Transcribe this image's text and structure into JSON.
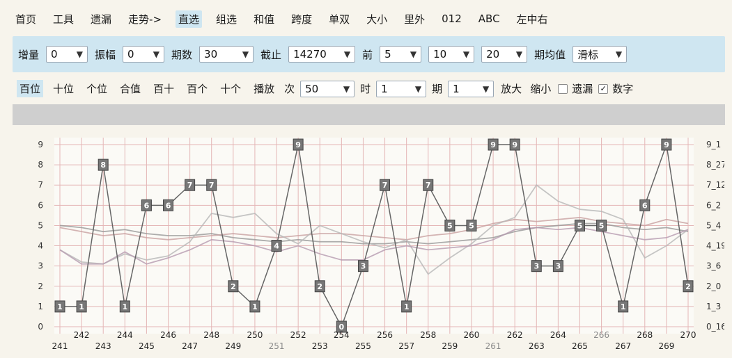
{
  "top_tabs": [
    {
      "label": "首页"
    },
    {
      "label": "工具"
    },
    {
      "label": "遗漏"
    },
    {
      "label": "走势->"
    },
    {
      "label": "直选",
      "active": true
    },
    {
      "label": "组选"
    },
    {
      "label": "和值"
    },
    {
      "label": "跨度"
    },
    {
      "label": "单双"
    },
    {
      "label": "大小"
    },
    {
      "label": "里外"
    },
    {
      "label": "012"
    },
    {
      "label": "ABC"
    },
    {
      "label": "左中右"
    }
  ],
  "filters_row": {
    "increment_label": "增量",
    "increment_value": "0",
    "amplitude_label": "振幅",
    "amplitude_value": "0",
    "periods_label": "期数",
    "periods_value": "30",
    "cutoff_label": "截止",
    "cutoff_value": "14270",
    "prev_label": "前",
    "prev_value": "5",
    "prev_value_2": "10",
    "prev_value_3": "20",
    "period_avg_label": "期均值",
    "slider_label": "滑标"
  },
  "controls_row": {
    "items": [
      {
        "label": "百位",
        "active": true
      },
      {
        "label": "十位"
      },
      {
        "label": "个位"
      },
      {
        "label": "合值"
      },
      {
        "label": "百十"
      },
      {
        "label": "百个"
      },
      {
        "label": "十个"
      },
      {
        "label": "播放"
      }
    ],
    "times_label": "次",
    "times_value": "50",
    "hour_label": "时",
    "hour_value": "1",
    "period_label": "期",
    "period_value": "1",
    "zoom_in": "放大",
    "zoom_out": "缩小",
    "missing_label": "遗漏",
    "missing_checked": false,
    "number_label": "数字",
    "number_checked": true
  },
  "chart_data": {
    "type": "line",
    "title": "",
    "xlabel": "",
    "ylabel": "",
    "ylim": [
      0,
      9
    ],
    "y_ticks": [
      0,
      1,
      2,
      3,
      4,
      5,
      6,
      7,
      8,
      9
    ],
    "right_labels": [
      "0_16",
      "1_3",
      "2_0",
      "3_6",
      "4_19",
      "5_4",
      "6_2",
      "7_12",
      "8_27",
      "9_1"
    ],
    "x": [
      "241",
      "242",
      "243",
      "244",
      "245",
      "246",
      "247",
      "248",
      "249",
      "250",
      "251",
      "252",
      "253",
      "254",
      "255",
      "256",
      "257",
      "258",
      "259",
      "260",
      "261",
      "262",
      "263",
      "264",
      "265",
      "266",
      "267",
      "268",
      "269",
      "270"
    ],
    "x_dim": [
      "251",
      "261",
      "266"
    ],
    "series": [
      {
        "values": [
          1,
          1,
          8,
          1,
          6,
          6,
          7,
          7,
          2,
          1,
          4,
          9,
          2,
          0,
          3,
          7,
          1,
          7,
          5,
          5,
          9,
          9,
          3,
          3,
          5,
          5,
          1,
          6,
          9,
          2
        ]
      }
    ],
    "averages": [
      {
        "color": "#999999",
        "values": [
          5.0,
          4.9,
          4.7,
          4.8,
          4.6,
          4.5,
          4.5,
          4.6,
          4.4,
          4.3,
          4.2,
          4.3,
          4.2,
          4.2,
          4.1,
          4.1,
          4.2,
          4.1,
          4.2,
          4.3,
          4.4,
          4.7,
          4.9,
          5.0,
          5.1,
          5.1,
          4.9,
          4.8,
          4.9,
          4.7
        ]
      },
      {
        "color": "#c9a1a1",
        "values": [
          4.9,
          4.7,
          4.5,
          4.6,
          4.4,
          4.3,
          4.4,
          4.5,
          4.6,
          4.5,
          4.4,
          4.5,
          4.6,
          4.6,
          4.5,
          4.4,
          4.3,
          4.5,
          4.6,
          4.8,
          5.1,
          5.3,
          5.2,
          5.3,
          5.4,
          5.2,
          5.1,
          5.0,
          5.3,
          5.1
        ]
      },
      {
        "color": "#b8b8b8",
        "values": [
          3.8,
          3.2,
          3.1,
          3.6,
          3.3,
          3.5,
          4.2,
          5.6,
          5.4,
          5.6,
          4.6,
          4.1,
          5.0,
          4.6,
          4.2,
          3.9,
          4.3,
          2.6,
          3.4,
          4.1,
          5.0,
          5.4,
          7.0,
          6.2,
          5.8,
          5.7,
          5.3,
          3.4,
          4.0,
          4.8
        ]
      },
      {
        "color": "#b69bb0",
        "values": [
          3.8,
          3.1,
          3.1,
          3.7,
          3.1,
          3.4,
          3.8,
          4.3,
          4.2,
          4.0,
          3.7,
          4.0,
          3.6,
          3.3,
          3.3,
          3.8,
          4.0,
          3.8,
          3.9,
          4.0,
          4.3,
          4.8,
          4.9,
          4.8,
          4.9,
          4.7,
          4.5,
          4.3,
          4.4,
          4.8
        ]
      }
    ],
    "grid": true
  }
}
